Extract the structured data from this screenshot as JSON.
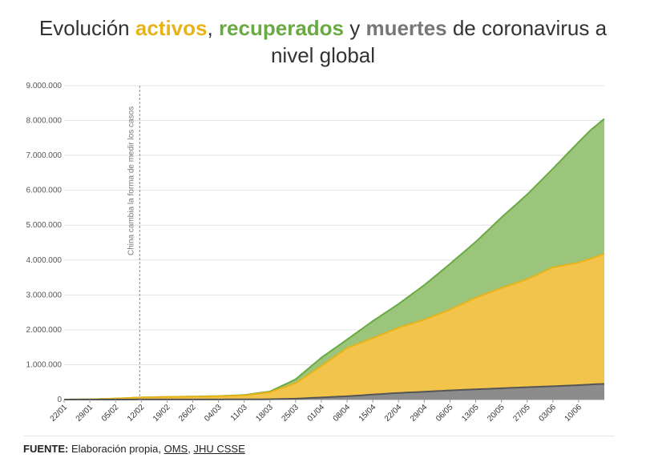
{
  "header": {
    "t1": "Evolución ",
    "t2": "activos",
    "t3": ", ",
    "t4": "recuperados",
    "t5": " y ",
    "t6": "muertes",
    "t7": " de coronavirus a nivel global"
  },
  "colors": {
    "activos": "#e8b319",
    "recuperados": "#6aa943",
    "muertes": "#7a7a7a",
    "activos_fill": "#f2c44c",
    "recuperados_fill": "#9bc57a",
    "muertes_fill": "#8c8c8c"
  },
  "annotation": {
    "text": "China cambia la forma de medir los casos",
    "x": "12/02"
  },
  "footer": {
    "label": "FUENTE:",
    "text": " Elaboración propia, ",
    "link1": "OMS",
    "sep": ", ",
    "link2": "JHU CSSE"
  },
  "chart_data": {
    "type": "area",
    "stacked": true,
    "x_start": "22/01",
    "x_step_days": 1,
    "x_tick_labels": [
      "22/01",
      "29/01",
      "05/02",
      "12/02",
      "19/02",
      "26/02",
      "04/03",
      "11/03",
      "18/03",
      "25/03",
      "01/04",
      "08/04",
      "15/04",
      "22/04",
      "29/04",
      "06/05",
      "13/05",
      "20/05",
      "27/05",
      "03/06",
      "10/06"
    ],
    "x_tick_days": [
      0,
      7,
      14,
      21,
      28,
      35,
      42,
      49,
      56,
      63,
      70,
      77,
      84,
      91,
      98,
      105,
      112,
      119,
      126,
      133,
      140
    ],
    "ylim": [
      0,
      9000000
    ],
    "y_ticks": [
      "0",
      "1.000.000",
      "2.000.000",
      "3.000.000",
      "4.000.000",
      "5.000.000",
      "6.000.000",
      "7.000.000",
      "8.000.000",
      "9.000.000"
    ],
    "y_values": [
      0,
      1000000,
      2000000,
      3000000,
      4000000,
      5000000,
      6000000,
      7000000,
      8000000,
      9000000
    ],
    "grid": true,
    "series": [
      {
        "name": "muertes",
        "x": [
          0,
          7,
          14,
          21,
          28,
          35,
          42,
          49,
          56,
          63,
          70,
          77,
          84,
          91,
          98,
          105,
          112,
          119,
          126,
          133,
          140,
          147
        ],
        "cumulative": [
          0,
          200,
          600,
          1300,
          2200,
          2900,
          3300,
          4300,
          8700,
          25000,
          60000,
          94000,
          144000,
          189000,
          224000,
          262000,
          293000,
          324000,
          353000,
          382000,
          414000,
          451000
        ]
      },
      {
        "name": "activos",
        "x": [
          0,
          7,
          14,
          21,
          28,
          35,
          42,
          49,
          56,
          63,
          70,
          77,
          84,
          91,
          98,
          105,
          112,
          119,
          126,
          133,
          140,
          145,
          147
        ],
        "cumulative": [
          0,
          6000,
          28000,
          60000,
          75000,
          83000,
          95000,
          120000,
          210000,
          470000,
          960000,
          1480000,
          1760000,
          2060000,
          2290000,
          2580000,
          2920000,
          3200000,
          3450000,
          3790000,
          3930000,
          4100000,
          4180000
        ]
      },
      {
        "name": "recuperados",
        "x": [
          0,
          7,
          14,
          21,
          28,
          35,
          42,
          49,
          56,
          63,
          70,
          77,
          84,
          91,
          98,
          105,
          112,
          119,
          126,
          133,
          140,
          143,
          147
        ],
        "cumulative": [
          0,
          6000,
          28000,
          60000,
          76000,
          86000,
          100000,
          130000,
          230000,
          580000,
          1200000,
          1720000,
          2250000,
          2740000,
          3280000,
          3890000,
          4520000,
          5220000,
          5880000,
          6620000,
          7380000,
          7700000,
          8050000
        ]
      }
    ]
  }
}
